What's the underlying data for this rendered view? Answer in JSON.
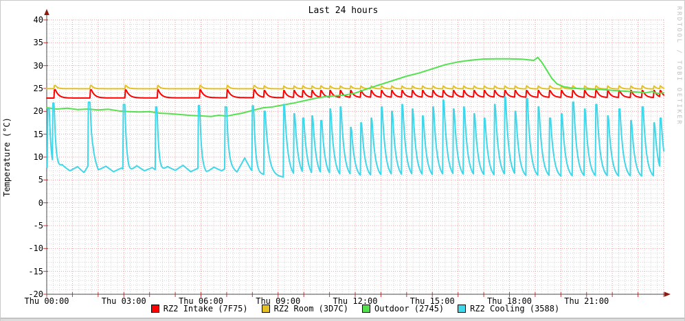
{
  "window": {
    "background": "#ffffff",
    "border_color": "#c9c9c9",
    "bottom_edge_color": "#c6c6c6"
  },
  "watermark": "RRDTOOL / TOBI OETIKER",
  "chart_data": {
    "type": "line",
    "title": "Last 24 hours",
    "ylabel": "Temperature (°C)",
    "xlim": [
      0,
      24
    ],
    "ylim": [
      -20,
      40
    ],
    "x_ticks": [
      {
        "t": 0,
        "label": "Thu 00:00"
      },
      {
        "t": 3,
        "label": "Thu 03:00"
      },
      {
        "t": 6,
        "label": "Thu 06:00"
      },
      {
        "t": 9,
        "label": "Thu 09:00"
      },
      {
        "t": 12,
        "label": "Thu 12:00"
      },
      {
        "t": 15,
        "label": "Thu 15:00"
      },
      {
        "t": 18,
        "label": "Thu 18:00"
      },
      {
        "t": 21,
        "label": "Thu 21:00"
      }
    ],
    "y_ticks": [
      40,
      35,
      30,
      25,
      20,
      15,
      10,
      5,
      0,
      -5,
      -10,
      -15,
      -20
    ],
    "grid": {
      "x_major_hours": 1,
      "x_minor_hours": 0.25,
      "y_major": 5,
      "y_minor": 1,
      "major_color": "#f09a9a",
      "minor_color": "#d2d2d2"
    },
    "axis": {
      "color": "#4a4a4a",
      "arrow_color": "#8e1b10",
      "tick_color": "#cc3333"
    },
    "legend_position": "bottom",
    "series": [
      {
        "name": "RZ2 Intake (7F75)",
        "color": "#ff0000",
        "width": 2,
        "base": [
          [
            0,
            22.9
          ],
          [
            9,
            23.0
          ],
          [
            16,
            23.1
          ],
          [
            24,
            23.0
          ]
        ],
        "pulses": [
          {
            "times": [
              0.3,
              1.7,
              3.05,
              4.3,
              5.95,
              7.0,
              8.05
            ],
            "peak": 24.7,
            "hold": 0.04,
            "tau": 0.13
          },
          {
            "times": [
              8.45,
              9.2,
              9.6,
              9.95,
              10.3,
              10.65,
              11.0,
              11.4,
              11.8,
              12.2,
              12.6,
              13.0,
              13.4,
              13.8,
              14.2,
              14.6,
              15.0,
              15.4,
              15.8,
              16.2,
              16.6,
              17.0,
              17.4,
              17.8,
              18.2,
              18.65,
              19.1,
              19.55,
              20.0,
              20.45,
              20.9,
              21.35,
              21.8,
              22.25,
              22.7,
              23.15,
              23.6,
              23.85
            ],
            "peak": 24.55,
            "hold": 0.04,
            "tau": 0.11
          }
        ]
      },
      {
        "name": "RZ2 Room (3D7C)",
        "color": "#e3c125",
        "width": 2,
        "base": [
          [
            0,
            24.95
          ],
          [
            24,
            24.9
          ]
        ],
        "pulses": [
          {
            "times": [
              0.3,
              1.7,
              3.05,
              4.3,
              5.95,
              7.0,
              8.05
            ],
            "peak": 25.65,
            "hold": 0.04,
            "tau": 0.09
          },
          {
            "times": [
              8.45,
              9.2,
              9.6,
              9.95,
              10.3,
              10.65,
              11.0,
              11.4,
              11.8,
              12.2,
              12.6,
              13.0,
              13.4,
              13.8,
              14.2,
              14.6,
              15.0,
              15.4,
              15.8,
              16.2,
              16.6,
              17.0,
              17.4,
              17.8,
              18.2,
              18.65,
              19.1,
              19.55,
              20.0,
              20.45,
              20.9,
              21.35,
              21.8,
              22.25,
              22.7,
              23.15,
              23.6,
              23.85
            ],
            "peak": 25.55,
            "hold": 0.03,
            "tau": 0.09
          }
        ]
      },
      {
        "name": "Outdoor (2745)",
        "color": "#55e14f",
        "width": 2,
        "points": [
          [
            0,
            20.8
          ],
          [
            0.4,
            20.5
          ],
          [
            0.8,
            20.7
          ],
          [
            1.2,
            20.4
          ],
          [
            1.6,
            20.5
          ],
          [
            2,
            20.3
          ],
          [
            2.4,
            20.45
          ],
          [
            2.8,
            20.1
          ],
          [
            3.2,
            19.95
          ],
          [
            3.6,
            19.85
          ],
          [
            4,
            19.95
          ],
          [
            4.4,
            19.6
          ],
          [
            4.8,
            19.5
          ],
          [
            5.2,
            19.3
          ],
          [
            5.6,
            19.1
          ],
          [
            6,
            19.0
          ],
          [
            6.4,
            18.9
          ],
          [
            6.7,
            19.15
          ],
          [
            7,
            18.95
          ],
          [
            7.3,
            19.3
          ],
          [
            7.6,
            19.6
          ],
          [
            8,
            20.2
          ],
          [
            8.4,
            20.75
          ],
          [
            8.8,
            21.0
          ],
          [
            9.2,
            21.4
          ],
          [
            9.6,
            21.8
          ],
          [
            10,
            22.3
          ],
          [
            10.4,
            22.8
          ],
          [
            10.8,
            23.2
          ],
          [
            11.2,
            23.4
          ],
          [
            11.6,
            23.55
          ],
          [
            12,
            24.0
          ],
          [
            12.5,
            25.0
          ],
          [
            13,
            25.9
          ],
          [
            13.5,
            26.8
          ],
          [
            14,
            27.7
          ],
          [
            14.5,
            28.4
          ],
          [
            15,
            29.3
          ],
          [
            15.5,
            30.2
          ],
          [
            16,
            30.8
          ],
          [
            16.5,
            31.2
          ],
          [
            17,
            31.45
          ],
          [
            17.5,
            31.5
          ],
          [
            18,
            31.5
          ],
          [
            18.5,
            31.4
          ],
          [
            18.95,
            31.15
          ],
          [
            19.1,
            31.8
          ],
          [
            19.25,
            30.8
          ],
          [
            19.45,
            29.0
          ],
          [
            19.65,
            27.2
          ],
          [
            19.85,
            26.0
          ],
          [
            20.1,
            25.4
          ],
          [
            20.5,
            25.05
          ],
          [
            21,
            24.9
          ],
          [
            21.5,
            24.8
          ],
          [
            22,
            24.6
          ],
          [
            22.5,
            24.4
          ],
          [
            23,
            24.2
          ],
          [
            23.3,
            24.05
          ],
          [
            23.55,
            24.35
          ],
          [
            23.75,
            23.9
          ],
          [
            24,
            24.05
          ]
        ]
      },
      {
        "name": "RZ2 Cooling (3588)",
        "color": "#3fd7e9",
        "width": 2,
        "base": [
          [
            0,
            7.8
          ],
          [
            0.3,
            6.7
          ],
          [
            0.6,
            8.2
          ],
          [
            0.9,
            7.0
          ],
          [
            1.2,
            7.9
          ],
          [
            1.45,
            6.6
          ],
          [
            1.8,
            9.9
          ],
          [
            2.0,
            7.1
          ],
          [
            2.3,
            8.0
          ],
          [
            2.6,
            6.8
          ],
          [
            2.9,
            7.6
          ],
          [
            3.2,
            6.6
          ],
          [
            3.5,
            8.1
          ],
          [
            3.8,
            7.0
          ],
          [
            4.1,
            7.7
          ],
          [
            4.4,
            6.6
          ],
          [
            4.7,
            7.9
          ],
          [
            5.0,
            7.1
          ],
          [
            5.3,
            8.2
          ],
          [
            5.6,
            6.8
          ],
          [
            5.9,
            7.6
          ],
          [
            6.2,
            6.5
          ],
          [
            6.5,
            7.8
          ],
          [
            6.8,
            7.0
          ],
          [
            7.1,
            8.0
          ],
          [
            7.4,
            6.7
          ],
          [
            7.7,
            9.8
          ],
          [
            7.95,
            7.2
          ],
          [
            8.2,
            6.4
          ],
          [
            8.5,
            6.1
          ],
          [
            9.0,
            5.7
          ],
          [
            9.5,
            5.4
          ],
          [
            10.5,
            5.3
          ],
          [
            24,
            5.2
          ]
        ],
        "pulses": [
          {
            "times": [
              0.03,
              0.22,
              1.62,
              2.97,
              4.22,
              5.88,
              6.93,
              7.98
            ],
            "peaks": [
              20.5,
              21.8,
              22.0,
              21.5,
              21.0,
              21.3,
              21.0,
              21.2
            ],
            "hold": 0.07,
            "tau": 0.07
          },
          {
            "times": [
              8.45,
              9.2,
              9.6,
              9.95,
              10.3,
              10.65,
              11.0,
              11.4,
              11.8,
              12.2,
              12.6,
              13.0,
              13.4,
              13.8,
              14.2,
              14.6,
              15.0,
              15.4,
              15.8,
              16.2,
              16.6,
              17.0,
              17.4,
              17.8,
              18.2,
              18.65,
              19.1,
              19.55,
              20.0,
              20.45,
              20.9,
              21.35,
              21.8,
              22.25,
              22.7,
              23.15,
              23.6,
              23.85
            ],
            "peaks": [
              20.0,
              21.5,
              19.5,
              18.5,
              19.0,
              18.0,
              20.5,
              21.0,
              16.5,
              17.5,
              18.5,
              21.0,
              20.0,
              21.5,
              20.5,
              19.0,
              21.0,
              22.5,
              20.5,
              21.0,
              19.5,
              18.5,
              21.5,
              23.2,
              20.0,
              22.8,
              21.0,
              18.5,
              19.5,
              22.0,
              20.5,
              21.5,
              19.0,
              20.5,
              18.0,
              21.0,
              17.5,
              18.5
            ],
            "hold": 0.05,
            "tau": 0.13
          }
        ]
      }
    ]
  }
}
